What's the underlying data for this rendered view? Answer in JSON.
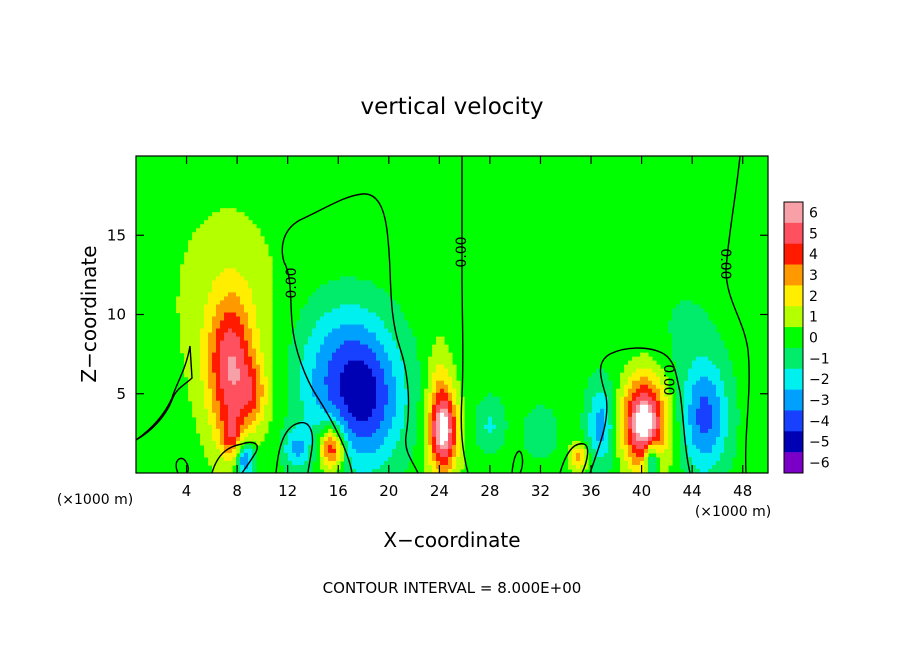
{
  "chart_data": {
    "type": "heatmap",
    "title": "vertical velocity",
    "xlabel": "X−coordinate",
    "ylabel": "Z−coordinate",
    "x_unit": "(×1000 m)",
    "y_unit": "(×1000 m)",
    "xlim": [
      0,
      50
    ],
    "ylim": [
      0,
      20
    ],
    "x_ticks": [
      4,
      8,
      12,
      16,
      20,
      24,
      28,
      32,
      36,
      40,
      44,
      48
    ],
    "y_ticks": [
      5,
      10,
      15
    ],
    "x_tick_labels": [
      "4",
      "8",
      "12",
      "16",
      "20",
      "24",
      "28",
      "32",
      "36",
      "40",
      "44",
      "48"
    ],
    "y_tick_labels": [
      "5",
      "10",
      "15"
    ],
    "colorbar_levels": [
      6,
      5,
      4,
      3,
      2,
      1,
      0,
      -1,
      -2,
      -3,
      -4,
      -5,
      -6
    ],
    "colorbar_labels": [
      "6",
      "5",
      "4",
      "3",
      "2",
      "1",
      "0",
      "−1",
      "−2",
      "−3",
      "−4",
      "−5",
      "−6"
    ],
    "colorbar_colors": [
      "#f8a0a8",
      "#ff5060",
      "#ff1a00",
      "#ff9900",
      "#ffee00",
      "#b4ff00",
      "#00ff00",
      "#00ec6a",
      "#00f0f0",
      "#00a0ff",
      "#1840ff",
      "#0000b4",
      "#7a00c8"
    ],
    "contour_level_label": "0.00",
    "contour_interval_label": "CONTOUR INTERVAL = 8.000E+00",
    "features": [
      {
        "x": 7.5,
        "z": 6.5,
        "sx": 1.3,
        "sz": 3.2,
        "w": 5.0
      },
      {
        "x": 9.3,
        "z": 5.0,
        "sx": 0.8,
        "sz": 1.4,
        "w": 2.2
      },
      {
        "x": 7.2,
        "z": 11.0,
        "sx": 3.5,
        "sz": 5.0,
        "w": 0.9
      },
      {
        "x": 7.6,
        "z": 2.3,
        "sx": 0.6,
        "sz": 1.0,
        "w": 2.5
      },
      {
        "x": 8.6,
        "z": 0.9,
        "sx": 0.5,
        "sz": 0.8,
        "w": -4.5
      },
      {
        "x": 15.5,
        "z": 1.6,
        "sx": 0.7,
        "sz": 1.0,
        "w": 5.5
      },
      {
        "x": 18.0,
        "z": 4.5,
        "sx": 2.2,
        "sz": 3.0,
        "w": -4.6
      },
      {
        "x": 16.0,
        "z": 8.0,
        "sx": 2.5,
        "sz": 2.5,
        "w": -1.8
      },
      {
        "x": 12.7,
        "z": 1.5,
        "sx": 0.8,
        "sz": 1.0,
        "w": -2.5
      },
      {
        "x": 14.0,
        "z": 5.0,
        "sx": 1.5,
        "sz": 2.0,
        "w": -1.0
      },
      {
        "x": 24.3,
        "z": 2.6,
        "sx": 0.8,
        "sz": 1.8,
        "w": 6.8
      },
      {
        "x": 24.0,
        "z": 6.0,
        "sx": 0.7,
        "sz": 2.0,
        "w": 1.4
      },
      {
        "x": 28.0,
        "z": 3.0,
        "sx": 0.8,
        "sz": 1.2,
        "w": -1.6
      },
      {
        "x": 32.0,
        "z": 2.5,
        "sx": 1.0,
        "sz": 1.2,
        "w": -1.2
      },
      {
        "x": 35.0,
        "z": 1.0,
        "sx": 0.5,
        "sz": 0.6,
        "w": 3.0
      },
      {
        "x": 36.8,
        "z": 3.0,
        "sx": 0.8,
        "sz": 1.8,
        "w": -3.0
      },
      {
        "x": 40.2,
        "z": 3.2,
        "sx": 1.2,
        "sz": 2.0,
        "w": 7.2
      },
      {
        "x": 40.8,
        "z": 0.8,
        "sx": 0.4,
        "sz": 0.8,
        "w": -4.5
      },
      {
        "x": 45.0,
        "z": 3.5,
        "sx": 1.3,
        "sz": 2.5,
        "w": -3.8
      },
      {
        "x": 43.5,
        "z": 9.0,
        "sx": 2.0,
        "sz": 3.0,
        "w": -0.5
      },
      {
        "x": 1.0,
        "z": 3.0,
        "sx": 1.5,
        "sz": 3.0,
        "w": 0.3
      },
      {
        "x": 33.0,
        "z": 11.0,
        "sx": 6.0,
        "sz": 4.0,
        "w": -0.3
      }
    ]
  }
}
